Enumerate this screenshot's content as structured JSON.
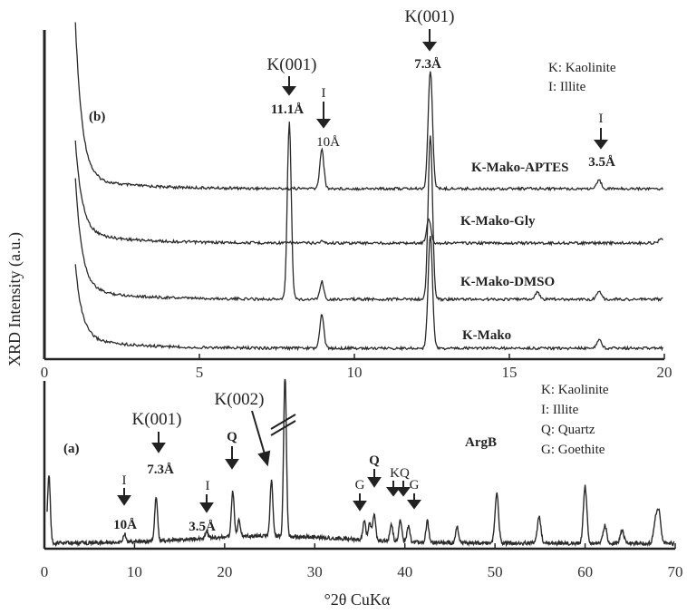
{
  "chart_data": [
    {
      "panel_label": "(b)",
      "type": "line",
      "ylabel": "XRD Intensity (a.u.)",
      "xlim": [
        0,
        20
      ],
      "x_ticks": [
        "0",
        "5",
        "10",
        "15",
        "20"
      ],
      "series": [
        {
          "name": "K-Mako-APTES",
          "peaks": [
            {
              "x": 8.95,
              "rel_height": 0.34
            },
            {
              "x": 12.45,
              "rel_height": 1.0
            },
            {
              "x": 17.9,
              "rel_height": 0.07
            }
          ]
        },
        {
          "name": "K-Mako-Gly",
          "peaks": [
            {
              "x": 8.95,
              "rel_height": 0.04
            },
            {
              "x": 12.4,
              "rel_height": 0.52
            },
            {
              "x": 19.9,
              "rel_height": 0.12
            }
          ]
        },
        {
          "name": "K-Mako-DMSO",
          "peaks": [
            {
              "x": 7.9,
              "rel_height": 1.0
            },
            {
              "x": 8.95,
              "rel_height": 0.1
            },
            {
              "x": 12.45,
              "rel_height": 0.93
            },
            {
              "x": 15.9,
              "rel_height": 0.04
            },
            {
              "x": 17.9,
              "rel_height": 0.05
            }
          ]
        },
        {
          "name": "K-Mako",
          "peaks": [
            {
              "x": 8.95,
              "rel_height": 0.3
            },
            {
              "x": 12.45,
              "rel_height": 1.0
            },
            {
              "x": 17.9,
              "rel_height": 0.08
            }
          ]
        }
      ],
      "annotations": [
        {
          "title": "K(001)",
          "label": "11.1Å",
          "x": 7.9
        },
        {
          "title": "I",
          "label": "10Å",
          "x": 8.95
        },
        {
          "title": "K(001)",
          "label": "7.3Å",
          "x": 12.45
        },
        {
          "title": "I",
          "label": "3.5Å",
          "x": 17.9
        }
      ],
      "legend": [
        "K: Kaolinite",
        "I: Illite"
      ]
    },
    {
      "panel_label": "(a)",
      "type": "line",
      "xlabel": "°2θ CuKα",
      "xlim": [
        0,
        70
      ],
      "x_ticks": [
        "0",
        "10",
        "20",
        "30",
        "40",
        "50",
        "60",
        "70"
      ],
      "series": [
        {
          "name": "ArgB",
          "peaks": [
            {
              "x": 0.5,
              "rel_height": 0.42
            },
            {
              "x": 8.9,
              "rel_height": 0.05
            },
            {
              "x": 12.4,
              "rel_height": 0.27
            },
            {
              "x": 18.0,
              "rel_height": 0.04
            },
            {
              "x": 20.9,
              "rel_height": 0.28
            },
            {
              "x": 21.6,
              "rel_height": 0.1
            },
            {
              "x": 25.2,
              "rel_height": 0.34
            },
            {
              "x": 26.7,
              "rel_height": 1.0
            },
            {
              "x": 35.5,
              "rel_height": 0.12
            },
            {
              "x": 36.1,
              "rel_height": 0.1
            },
            {
              "x": 36.6,
              "rel_height": 0.16
            },
            {
              "x": 38.5,
              "rel_height": 0.11
            },
            {
              "x": 39.5,
              "rel_height": 0.13
            },
            {
              "x": 40.4,
              "rel_height": 0.1
            },
            {
              "x": 42.5,
              "rel_height": 0.13
            },
            {
              "x": 45.8,
              "rel_height": 0.1
            },
            {
              "x": 50.2,
              "rel_height": 0.31
            },
            {
              "x": 54.9,
              "rel_height": 0.16
            },
            {
              "x": 60.0,
              "rel_height": 0.35
            },
            {
              "x": 62.2,
              "rel_height": 0.11
            },
            {
              "x": 64.1,
              "rel_height": 0.08
            },
            {
              "x": 67.8,
              "rel_height": 0.14
            },
            {
              "x": 68.2,
              "rel_height": 0.19
            }
          ]
        }
      ],
      "annotations": [
        {
          "title": "I",
          "label": "10Å",
          "x": 8.9
        },
        {
          "title": "K(001)",
          "label": "7.3Å",
          "x": 12.4
        },
        {
          "title": "I",
          "label": "3.5Å",
          "x": 18.0
        },
        {
          "title": "Q",
          "label": "",
          "x": 20.9
        },
        {
          "title": "K(002)",
          "label": "",
          "x": 25.2
        },
        {
          "title": "G",
          "label": "",
          "x": 35.5
        },
        {
          "title": "Q",
          "label": "",
          "x": 36.6
        },
        {
          "title": "KQ",
          "label": "",
          "x": 39.0
        },
        {
          "title": "G",
          "label": "",
          "x": 40.6
        }
      ],
      "legend": [
        "K: Kaolinite",
        "I: Illite",
        "Q: Quartz",
        "G: Goethite"
      ]
    }
  ]
}
